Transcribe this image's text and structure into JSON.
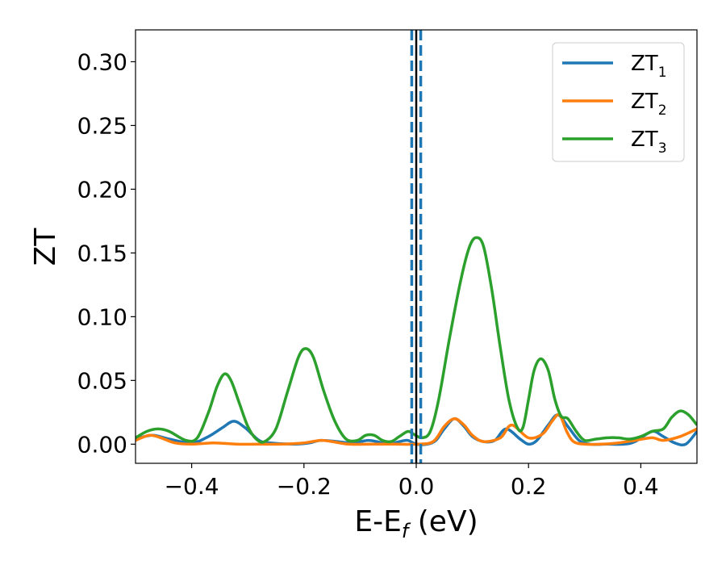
{
  "chart_data": {
    "type": "line",
    "title": "",
    "xlabel_main": "E-E",
    "xlabel_sub": "f",
    "xlabel_unit": " (eV)",
    "ylabel": "ZT",
    "xlim": [
      -0.5,
      0.5
    ],
    "ylim": [
      -0.015,
      0.325
    ],
    "xticks": [
      -0.4,
      -0.2,
      0.0,
      0.2,
      0.4
    ],
    "xtick_labels": [
      "−0.4",
      "−0.2",
      "0.0",
      "0.2",
      "0.4"
    ],
    "yticks": [
      0.0,
      0.05,
      0.1,
      0.15,
      0.2,
      0.25,
      0.3
    ],
    "ytick_labels": [
      "0.00",
      "0.05",
      "0.10",
      "0.15",
      "0.20",
      "0.25",
      "0.30"
    ],
    "grid": false,
    "legend_position": "top-right",
    "vertical_lines": [
      {
        "x": 0.0,
        "color": "#000000",
        "style": "solid"
      },
      {
        "x": -0.008,
        "color": "#1f77b4",
        "style": "dashed"
      },
      {
        "x": 0.008,
        "color": "#1f77b4",
        "style": "dashed"
      }
    ],
    "series": [
      {
        "name_main": "ZT",
        "name_sub": "1",
        "color": "#1f77b4",
        "points": [
          [
            -0.5,
            0.004
          ],
          [
            -0.47,
            0.007
          ],
          [
            -0.44,
            0.004
          ],
          [
            -0.4,
            0.001
          ],
          [
            -0.37,
            0.006
          ],
          [
            -0.345,
            0.013
          ],
          [
            -0.325,
            0.018
          ],
          [
            -0.305,
            0.013
          ],
          [
            -0.28,
            0.003
          ],
          [
            -0.26,
            0.001
          ],
          [
            -0.22,
            0.0
          ],
          [
            -0.19,
            0.001
          ],
          [
            -0.17,
            0.003
          ],
          [
            -0.14,
            0.002
          ],
          [
            -0.12,
            0.001
          ],
          [
            -0.1,
            0.002
          ],
          [
            -0.085,
            0.003
          ],
          [
            -0.07,
            0.002
          ],
          [
            -0.05,
            0.0
          ],
          [
            -0.03,
            0.002
          ],
          [
            -0.015,
            0.003
          ],
          [
            0.0,
            0.0
          ],
          [
            0.02,
            0.0
          ],
          [
            0.035,
            0.003
          ],
          [
            0.05,
            0.012
          ],
          [
            0.068,
            0.02
          ],
          [
            0.085,
            0.014
          ],
          [
            0.1,
            0.006
          ],
          [
            0.12,
            0.002
          ],
          [
            0.14,
            0.003
          ],
          [
            0.16,
            0.012
          ],
          [
            0.185,
            0.004
          ],
          [
            0.2,
            0.0
          ],
          [
            0.215,
            0.003
          ],
          [
            0.235,
            0.015
          ],
          [
            0.252,
            0.023
          ],
          [
            0.27,
            0.014
          ],
          [
            0.29,
            0.003
          ],
          [
            0.31,
            0.0
          ],
          [
            0.34,
            0.0
          ],
          [
            0.37,
            0.0
          ],
          [
            0.39,
            0.002
          ],
          [
            0.42,
            0.01
          ],
          [
            0.44,
            0.006
          ],
          [
            0.46,
            0.001
          ],
          [
            0.48,
            0.0
          ],
          [
            0.5,
            0.01
          ]
        ]
      },
      {
        "name_main": "ZT",
        "name_sub": "2",
        "color": "#ff7f0e",
        "points": [
          [
            -0.5,
            0.003
          ],
          [
            -0.475,
            0.007
          ],
          [
            -0.455,
            0.005
          ],
          [
            -0.43,
            0.001
          ],
          [
            -0.4,
            0.0
          ],
          [
            -0.36,
            0.001
          ],
          [
            -0.32,
            0.0
          ],
          [
            -0.28,
            0.0
          ],
          [
            -0.24,
            0.0
          ],
          [
            -0.2,
            0.001
          ],
          [
            -0.17,
            0.003
          ],
          [
            -0.15,
            0.002
          ],
          [
            -0.12,
            0.0
          ],
          [
            -0.08,
            0.0
          ],
          [
            -0.04,
            0.0
          ],
          [
            0.0,
            0.0
          ],
          [
            0.03,
            0.002
          ],
          [
            0.05,
            0.014
          ],
          [
            0.068,
            0.02
          ],
          [
            0.085,
            0.015
          ],
          [
            0.1,
            0.007
          ],
          [
            0.12,
            0.002
          ],
          [
            0.15,
            0.005
          ],
          [
            0.17,
            0.015
          ],
          [
            0.2,
            0.005
          ],
          [
            0.225,
            0.008
          ],
          [
            0.242,
            0.018
          ],
          [
            0.255,
            0.023
          ],
          [
            0.268,
            0.01
          ],
          [
            0.28,
            0.002
          ],
          [
            0.3,
            0.0
          ],
          [
            0.33,
            0.0
          ],
          [
            0.36,
            0.001
          ],
          [
            0.39,
            0.003
          ],
          [
            0.42,
            0.005
          ],
          [
            0.44,
            0.003
          ],
          [
            0.47,
            0.006
          ],
          [
            0.5,
            0.012
          ]
        ]
      },
      {
        "name_main": "ZT",
        "name_sub": "3",
        "color": "#2ca02c",
        "points": [
          [
            -0.5,
            0.005
          ],
          [
            -0.48,
            0.01
          ],
          [
            -0.46,
            0.012
          ],
          [
            -0.44,
            0.01
          ],
          [
            -0.41,
            0.003
          ],
          [
            -0.39,
            0.005
          ],
          [
            -0.37,
            0.025
          ],
          [
            -0.355,
            0.045
          ],
          [
            -0.342,
            0.055
          ],
          [
            -0.33,
            0.05
          ],
          [
            -0.315,
            0.032
          ],
          [
            -0.3,
            0.014
          ],
          [
            -0.285,
            0.004
          ],
          [
            -0.27,
            0.002
          ],
          [
            -0.25,
            0.012
          ],
          [
            -0.23,
            0.04
          ],
          [
            -0.21,
            0.068
          ],
          [
            -0.197,
            0.075
          ],
          [
            -0.183,
            0.068
          ],
          [
            -0.165,
            0.042
          ],
          [
            -0.145,
            0.018
          ],
          [
            -0.125,
            0.004
          ],
          [
            -0.105,
            0.003
          ],
          [
            -0.09,
            0.007
          ],
          [
            -0.075,
            0.007
          ],
          [
            -0.06,
            0.003
          ],
          [
            -0.045,
            0.002
          ],
          [
            -0.03,
            0.006
          ],
          [
            -0.015,
            0.01
          ],
          [
            -0.005,
            0.008
          ],
          [
            0.01,
            0.005
          ],
          [
            0.025,
            0.01
          ],
          [
            0.04,
            0.035
          ],
          [
            0.06,
            0.085
          ],
          [
            0.08,
            0.13
          ],
          [
            0.095,
            0.155
          ],
          [
            0.107,
            0.162
          ],
          [
            0.12,
            0.155
          ],
          [
            0.135,
            0.12
          ],
          [
            0.15,
            0.075
          ],
          [
            0.165,
            0.035
          ],
          [
            0.18,
            0.013
          ],
          [
            0.19,
            0.013
          ],
          [
            0.2,
            0.035
          ],
          [
            0.21,
            0.058
          ],
          [
            0.222,
            0.067
          ],
          [
            0.235,
            0.058
          ],
          [
            0.247,
            0.035
          ],
          [
            0.258,
            0.022
          ],
          [
            0.27,
            0.02
          ],
          [
            0.285,
            0.01
          ],
          [
            0.3,
            0.003
          ],
          [
            0.32,
            0.004
          ],
          [
            0.34,
            0.005
          ],
          [
            0.36,
            0.005
          ],
          [
            0.38,
            0.004
          ],
          [
            0.4,
            0.006
          ],
          [
            0.42,
            0.01
          ],
          [
            0.44,
            0.012
          ],
          [
            0.455,
            0.021
          ],
          [
            0.47,
            0.026
          ],
          [
            0.485,
            0.023
          ],
          [
            0.5,
            0.015
          ]
        ]
      }
    ]
  }
}
